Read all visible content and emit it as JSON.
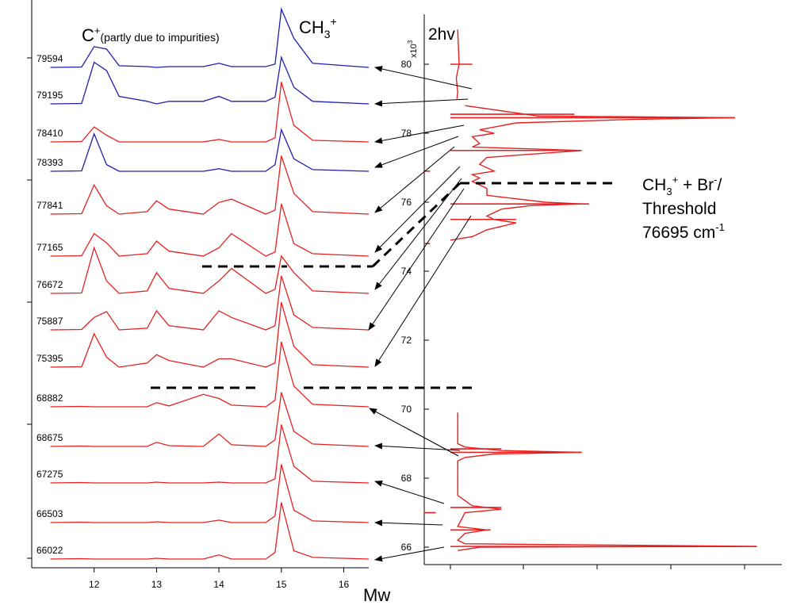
{
  "chart_data": [
    {
      "type": "line",
      "title": "",
      "xlabel": "Mw",
      "ylabel": "",
      "xlim": [
        11.0,
        16.4
      ],
      "xticks": [
        12,
        13,
        14,
        15,
        16
      ],
      "grid": false,
      "annotations": {
        "c_main": "C",
        "c_sup": "+",
        "c_note": "(partly due to impurities)",
        "ch3_main": "CH",
        "ch3_sub": "3",
        "ch3_sup": "+"
      },
      "colors": {
        "blue": "#1f1fb0",
        "red": "#e62020"
      },
      "x": [
        11.3,
        11.8,
        12.0,
        12.2,
        12.4,
        12.85,
        13.0,
        13.2,
        13.75,
        14.0,
        14.2,
        14.75,
        14.9,
        15.0,
        15.2,
        15.5,
        16.4
      ],
      "series": [
        {
          "name": "79594",
          "color": "blue",
          "values": [
            0,
            0.5,
            25,
            22,
            2,
            1,
            0,
            1,
            1,
            5,
            1,
            1,
            4,
            70,
            35,
            5,
            0
          ]
        },
        {
          "name": "79195",
          "color": "blue",
          "values": [
            0,
            0.5,
            50,
            40,
            9,
            3,
            0,
            3,
            3,
            9,
            3,
            3,
            8,
            56,
            20,
            3,
            0
          ]
        },
        {
          "name": "78410",
          "color": "red",
          "values": [
            0,
            0.5,
            18,
            8,
            0,
            0,
            0,
            0,
            0,
            3,
            0,
            0,
            5,
            72,
            20,
            2,
            0
          ]
        },
        {
          "name": "78393",
          "color": "blue",
          "values": [
            0,
            0.5,
            45,
            8,
            0,
            0,
            0,
            0,
            0,
            3,
            0,
            0,
            8,
            50,
            15,
            2,
            0
          ]
        },
        {
          "name": "77841",
          "color": "red",
          "values": [
            0,
            0.5,
            35,
            10,
            0,
            3,
            16,
            6,
            0,
            14,
            18,
            0,
            5,
            70,
            25,
            3,
            0
          ]
        },
        {
          "name": "77165",
          "color": "red",
          "values": [
            0,
            0.5,
            27,
            16,
            0,
            3,
            18,
            6,
            0,
            10,
            27,
            0,
            5,
            63,
            15,
            3,
            0
          ]
        },
        {
          "name": "76672",
          "color": "red",
          "values": [
            0,
            0.5,
            55,
            15,
            0,
            3,
            25,
            6,
            0,
            15,
            30,
            0,
            5,
            45,
            25,
            3,
            0
          ]
        },
        {
          "name": "75887",
          "color": "red",
          "values": [
            0,
            0.5,
            15,
            22,
            0,
            2,
            23,
            5,
            0,
            23,
            15,
            0,
            5,
            65,
            18,
            3,
            0
          ]
        },
        {
          "name": "75395",
          "color": "red",
          "values": [
            0,
            0.5,
            40,
            12,
            0,
            5,
            15,
            8,
            0,
            10,
            10,
            0,
            5,
            78,
            25,
            3,
            0
          ]
        },
        {
          "name": "68882",
          "color": "red",
          "values": [
            0,
            0.5,
            0,
            0,
            0,
            0,
            5,
            1,
            15,
            10,
            2,
            0,
            8,
            78,
            25,
            3,
            0
          ]
        },
        {
          "name": "68675",
          "color": "red",
          "values": [
            0,
            0.5,
            0,
            0,
            0,
            0,
            5,
            1,
            0,
            15,
            2,
            0,
            8,
            65,
            18,
            3,
            0
          ]
        },
        {
          "name": "67275",
          "color": "red",
          "values": [
            0,
            0.5,
            0,
            0,
            0,
            0,
            1,
            0,
            0,
            1,
            0,
            0,
            5,
            70,
            20,
            2,
            0
          ]
        },
        {
          "name": "66503",
          "color": "red",
          "values": [
            0,
            0.5,
            0,
            0,
            0,
            0,
            1,
            0,
            0,
            3,
            0,
            0,
            8,
            70,
            15,
            2,
            0
          ]
        },
        {
          "name": "66022",
          "color": "red",
          "values": [
            0,
            0.5,
            0,
            0,
            0,
            0,
            1,
            0,
            0,
            5,
            0,
            0,
            8,
            68,
            10,
            2,
            0
          ]
        }
      ]
    },
    {
      "type": "line",
      "title": "",
      "xlabel": "",
      "ylabel": "2hv",
      "y_exponent_base": "x10",
      "y_exponent_power": "3",
      "ylim": [
        65.5,
        81.5
      ],
      "yticks": [
        66,
        68,
        70,
        72,
        74,
        76,
        78,
        80
      ],
      "color": "#e62020",
      "threshold_value": 76.695,
      "annotation": {
        "line1_main": "CH",
        "line1_sub": "3",
        "line1_sup": "+",
        "line1_rest": " + Br",
        "line1_sup2": "-",
        "line1_end": "/",
        "line2": "Threshold",
        "line3_main": "76695 cm",
        "line3_sup": "-1"
      },
      "spectrum_segments": [
        {
          "y": [
            81.0,
            80.0,
            79.6,
            79.2,
            79.0
          ],
          "x": [
            0.1,
            0.12,
            0.08,
            0.1,
            0.09
          ]
        },
        {
          "y": [
            78.8,
            78.5,
            78.45,
            78.4,
            78.3,
            78.1,
            78.0,
            77.9,
            77.7,
            77.6,
            77.5,
            77.3,
            77.1,
            76.9,
            76.8,
            76.7,
            76.6,
            76.5,
            76.4,
            76.2,
            76.0,
            75.95,
            75.9,
            75.8,
            75.6,
            75.5,
            75.4,
            75.2,
            75.0,
            74.9
          ],
          "x": [
            0.2,
            1.2,
            3.9,
            2.5,
            0.9,
            0.4,
            0.6,
            0.3,
            0.4,
            0.3,
            1.8,
            0.5,
            0.4,
            0.6,
            0.3,
            0.4,
            0.3,
            0.4,
            0.5,
            0.5,
            1.3,
            1.8,
            1.1,
            0.7,
            0.5,
            0.6,
            0.9,
            0.5,
            0.3,
            0.0
          ]
        },
        {
          "y": [
            69.9,
            69.5,
            69.0,
            68.9,
            68.8,
            68.75,
            68.7,
            68.6,
            68.5,
            68.0,
            67.5,
            67.2,
            67.1,
            67.0,
            66.6,
            66.5,
            66.4,
            66.2,
            66.1,
            66.02,
            66.0,
            65.9
          ],
          "x": [
            0.1,
            0.1,
            0.1,
            0.2,
            0.7,
            1.8,
            0.6,
            0.2,
            0.1,
            0.1,
            0.1,
            0.3,
            0.7,
            0.2,
            0.1,
            0.5,
            0.2,
            0.1,
            0.2,
            4.2,
            0.4,
            0.1
          ]
        }
      ]
    }
  ],
  "labels": {
    "bottom_xlabel": "Mw"
  }
}
